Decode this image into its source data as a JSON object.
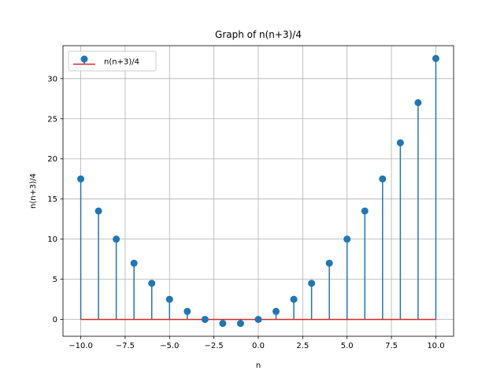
{
  "chart_data": {
    "type": "stem",
    "title": "Graph of n(n+3)/4",
    "xlabel": "n",
    "ylabel": "n(n+3)/4",
    "xlim": [
      -11,
      11
    ],
    "ylim": [
      -2.1,
      34.1
    ],
    "x_ticks": [
      -10,
      -7.5,
      -5,
      -2.5,
      0,
      2.5,
      5,
      7.5,
      10
    ],
    "x_tick_labels": [
      "−10.0",
      "−7.5",
      "−5.0",
      "−2.5",
      "0.0",
      "2.5",
      "5.0",
      "7.5",
      "10.0"
    ],
    "y_ticks": [
      0,
      5,
      10,
      15,
      20,
      25,
      30
    ],
    "y_tick_labels": [
      "0",
      "5",
      "10",
      "15",
      "20",
      "25",
      "30"
    ],
    "grid": true,
    "legend_position": "top-left",
    "series": [
      {
        "name": "n(n+3)/4",
        "color": "#1f77b4",
        "baseline_color": "#d62728",
        "x": [
          -10,
          -9,
          -8,
          -7,
          -6,
          -5,
          -4,
          -3,
          -2,
          -1,
          0,
          1,
          2,
          3,
          4,
          5,
          6,
          7,
          8,
          9,
          10
        ],
        "y": [
          17.5,
          13.5,
          10,
          7,
          4.5,
          2.5,
          1,
          0,
          -0.5,
          -0.5,
          0,
          1,
          2.5,
          4.5,
          7,
          10,
          13.5,
          17.5,
          22,
          27,
          32.5
        ]
      }
    ]
  }
}
